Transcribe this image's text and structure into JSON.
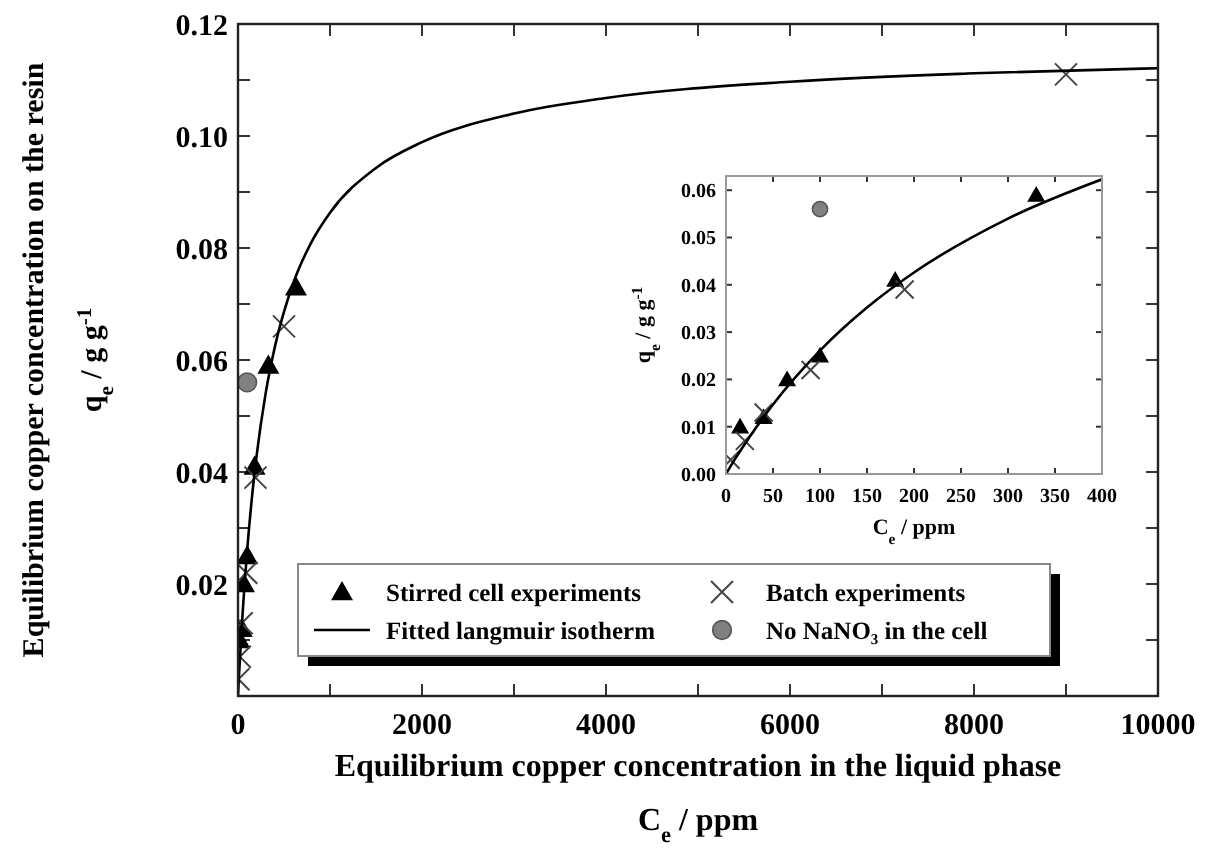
{
  "chart_data": [
    {
      "type": "scatter",
      "xlabel": "Equilibrium copper concentration in the liquid phase\nC$_{e}$  /  ppm",
      "ylabel": "Equilibrium copper concentration on the resin\nq$_{e}$  /  g g$^{-1}$",
      "xlim": [
        0,
        10000
      ],
      "xticks": [
        0,
        {
          "value": 1000,
          "label": null
        },
        2000,
        {
          "value": 3000,
          "label": null
        },
        4000,
        {
          "value": 5000,
          "label": null
        },
        6000,
        {
          "value": 7000,
          "label": null
        },
        8000,
        {
          "value": 9000,
          "label": null
        },
        10000
      ],
      "ylim": [
        0,
        0.12
      ],
      "yticks": [
        {
          "value": 0,
          "label": null
        },
        {
          "value": 0.01,
          "label": null
        },
        0.02,
        {
          "value": 0.03,
          "label": null
        },
        0.04,
        {
          "value": 0.05,
          "label": null
        },
        0.06,
        {
          "value": 0.07,
          "label": null
        },
        0.08,
        {
          "value": 0.09,
          "label": null
        },
        {
          "value": 0.1,
          "label": "0.10"
        },
        {
          "value": 0.11,
          "label": null
        },
        0.12
      ],
      "legend": "bottom",
      "series": [
        {
          "name": "Stirred cell experiments",
          "marker": "triangle",
          "color": "#000000",
          "x": [
            15,
            40,
            65,
            100,
            180,
            330,
            630
          ],
          "values": [
            0.01,
            0.012,
            0.02,
            0.025,
            0.041,
            0.059,
            0.073
          ]
        },
        {
          "name": "Batch experiments",
          "marker": "cross",
          "color": "#444444",
          "x": [
            5,
            20,
            40,
            90,
            190,
            500,
            9000
          ],
          "values": [
            0.003,
            0.007,
            0.013,
            0.022,
            0.039,
            0.066,
            0.111
          ]
        },
        {
          "name": "Fitted langmuir isotherm",
          "type": "line",
          "color": "#000000",
          "x": [
            0,
            10,
            25,
            50,
            100,
            150,
            200,
            300,
            400,
            600,
            800,
            1000,
            1500,
            2000,
            3000,
            4000,
            6000,
            8000,
            10000
          ],
          "values": [
            0,
            0.0033,
            0.0078,
            0.0147,
            0.0261,
            0.0352,
            0.0426,
            0.054,
            0.0623,
            0.0737,
            0.0811,
            0.0863,
            0.0943,
            0.0989,
            0.104,
            0.1068,
            0.1097,
            0.1112,
            0.1121
          ]
        },
        {
          "name": "No NaNO₃ in the cell",
          "marker": "circle",
          "color": "#808080",
          "x": [
            100
          ],
          "values": [
            0.056
          ]
        }
      ]
    },
    {
      "type": "scatter",
      "xlabel": "C$_{e}$  /  ppm",
      "ylabel": "q$_{e}$  /  g g$^{-1}$",
      "xlim": [
        0,
        400
      ],
      "xticks": [
        0,
        50,
        100,
        150,
        200,
        250,
        300,
        350,
        400
      ],
      "ylim": [
        0,
        0.063
      ],
      "yticks": [
        {
          "value": 0,
          "label": "0.00"
        },
        0.01,
        0.02,
        0.03,
        0.04,
        0.05,
        0.06
      ],
      "series": [
        {
          "marker": "triangle",
          "color": "#000000",
          "x": [
            15,
            40,
            65,
            100,
            180,
            330
          ],
          "values": [
            0.01,
            0.012,
            0.02,
            0.025,
            0.041,
            0.059
          ]
        },
        {
          "marker": "cross",
          "color": "#444444",
          "x": [
            5,
            20,
            40,
            90,
            190
          ],
          "values": [
            0.003,
            0.007,
            0.013,
            0.022,
            0.039
          ]
        },
        {
          "type": "line",
          "color": "#000000",
          "x": [
            0,
            10,
            25,
            50,
            100,
            150,
            200,
            300,
            400
          ],
          "values": [
            0,
            0.0033,
            0.0078,
            0.0147,
            0.0261,
            0.0352,
            0.0426,
            0.054,
            0.0623
          ]
        },
        {
          "marker": "circle",
          "color": "#808080",
          "x": [
            100
          ],
          "values": [
            0.056
          ]
        }
      ]
    }
  ]
}
